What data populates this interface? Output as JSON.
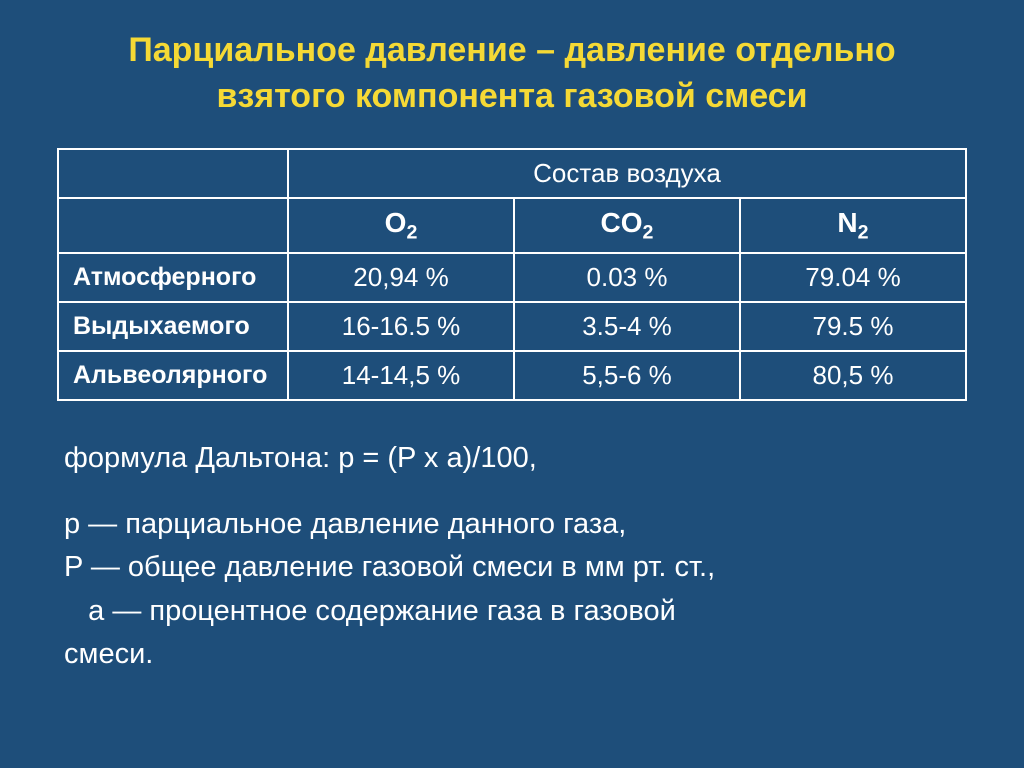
{
  "title_line1": "Парциальное  давление – давление  отдельно",
  "title_line2": "взятого  компонента  газовой  смеси",
  "table": {
    "main_header": "Состав воздуха",
    "gas_headers": [
      "O",
      "CO",
      "N"
    ],
    "rows": [
      {
        "label": "Атмосферного",
        "o2": "20,94 %",
        "co2": "0.03 %",
        "n2": "79.04 %"
      },
      {
        "label": "Выдыхаемого",
        "o2": "16-16.5 %",
        "co2": "3.5-4 %",
        "n2": "79.5 %"
      },
      {
        "label": "Альвеолярного",
        "o2": "14-14,5 %",
        "co2": "5,5-6 %",
        "n2": "80,5 %"
      }
    ]
  },
  "formula": {
    "dalton": "формула Дальтона:   p = (P х a)/100,",
    "p_lower": "p — парциальное давление данного газа,",
    "p_upper": "P — общее давление газовой смеси в мм рт. ст.,",
    "a_end": "   a — процентное содержание газа в газовой",
    "a_end2": "смеси."
  },
  "colors": {
    "background": "#1e4e7a",
    "title": "#f5d935",
    "text": "#ffffff",
    "border": "#ffffff"
  }
}
